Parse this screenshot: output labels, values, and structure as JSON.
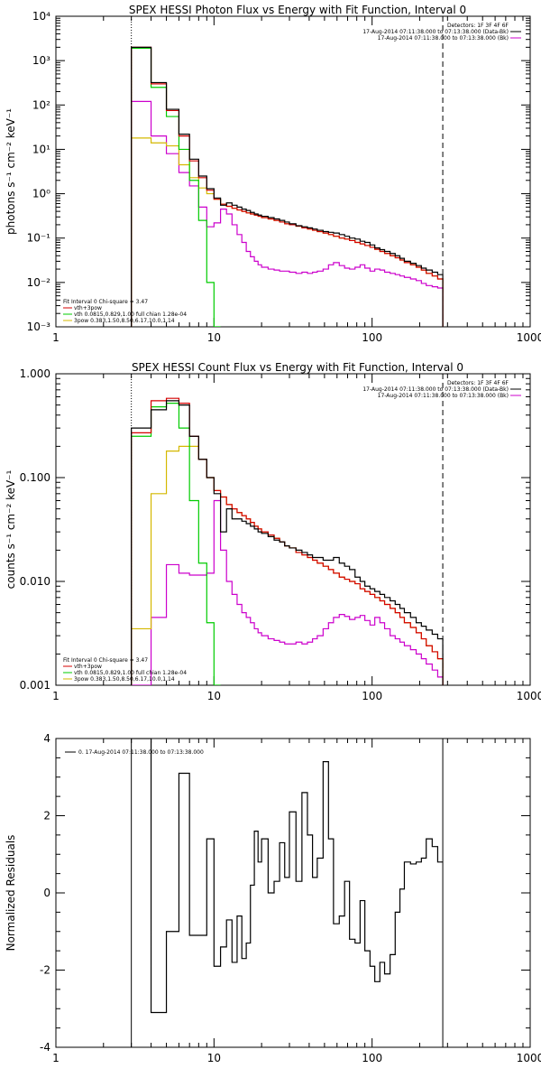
{
  "chart_data": [
    {
      "type": "line",
      "title": "SPEX HESSI Photon Flux vs Energy with Fit Function, Interval 0",
      "xlabel": "",
      "ylabel": "photons s⁻¹ cm⁻² keV⁻¹",
      "xscale": "log",
      "yscale": "log",
      "xlim": [
        1,
        1000
      ],
      "ylim": [
        0.001,
        10000
      ],
      "x_ticks": [
        "1",
        "10",
        "100",
        "1000"
      ],
      "y_ticks": [
        "10⁻³",
        "10⁻²",
        "10⁻¹",
        "10⁰",
        "10¹",
        "10²",
        "10³",
        "10⁴"
      ],
      "legend_top_right": {
        "header": "Detectors: 1F 3F 4F 6F",
        "entries": [
          {
            "label": "17-Aug-2014 07:11:38.000 to 07:13:38.000 (Data-Bk)",
            "color": "#000000"
          },
          {
            "label": "17-Aug-2014 07:11:38.000 to 07:13:38.000 (Bk)",
            "color": "#cc00cc"
          }
        ]
      },
      "legend_bottom_left": {
        "header": "Fit Interval 0   Chi-square = 3.47",
        "entries": [
          {
            "label": "vth+3pow",
            "color": "#d40000"
          },
          {
            "label": "vth 0.0815,0.829,1.00  full chian 1.28e-04",
            "color": "#00cc00"
          },
          {
            "label": "3pow 0.383,1.50,8.50,6.17,10.0,1.14",
            "color": "#d4b800"
          }
        ]
      },
      "edges": [
        3,
        4,
        5,
        6,
        7,
        8,
        9,
        10,
        11,
        12,
        13,
        14,
        15,
        16,
        17,
        18,
        19,
        20,
        22,
        24,
        26,
        28,
        30,
        33,
        36,
        39,
        42,
        45,
        49,
        53,
        57,
        62,
        67,
        72,
        78,
        84,
        90,
        97,
        104,
        112,
        120,
        130,
        140,
        150,
        160,
        175,
        190,
        205,
        220,
        240,
        260,
        280
      ],
      "series": [
        {
          "name": "Data-Bk",
          "color": "#000000",
          "values": [
            2000,
            320,
            80,
            22,
            6,
            2.5,
            1.3,
            0.8,
            0.55,
            0.62,
            0.55,
            0.5,
            0.45,
            0.42,
            0.38,
            0.35,
            0.33,
            0.31,
            0.29,
            0.27,
            0.25,
            0.23,
            0.21,
            0.19,
            0.18,
            0.17,
            0.16,
            0.15,
            0.14,
            0.135,
            0.13,
            0.12,
            0.11,
            0.1,
            0.095,
            0.085,
            0.08,
            0.07,
            0.06,
            0.055,
            0.05,
            0.045,
            0.04,
            0.035,
            0.03,
            0.027,
            0.024,
            0.021,
            0.019,
            0.017,
            0.015
          ]
        },
        {
          "name": "vth+3pow",
          "color": "#d40000",
          "values": [
            2000,
            300,
            75,
            20,
            5.5,
            2.3,
            1.2,
            0.75,
            0.58,
            0.52,
            0.47,
            0.43,
            0.4,
            0.37,
            0.35,
            0.33,
            0.31,
            0.29,
            0.27,
            0.25,
            0.23,
            0.21,
            0.2,
            0.185,
            0.17,
            0.16,
            0.15,
            0.14,
            0.13,
            0.12,
            0.11,
            0.1,
            0.095,
            0.088,
            0.08,
            0.074,
            0.068,
            0.062,
            0.056,
            0.05,
            0.045,
            0.04,
            0.036,
            0.032,
            0.028,
            0.025,
            0.022,
            0.019,
            0.016,
            0.014,
            0.012
          ]
        },
        {
          "name": "vth",
          "color": "#00cc00",
          "values": [
            1900,
            250,
            55,
            10,
            2,
            0.25,
            0.01,
            0.0005
          ]
        },
        {
          "name": "3pow",
          "color": "#d4b800",
          "values": [
            18,
            14,
            12,
            4.5,
            2.3,
            1.35,
            1.0,
            0.75,
            0.58,
            0.52,
            0.47,
            0.43,
            0.4,
            0.37,
            0.35,
            0.33,
            0.31,
            0.29,
            0.27,
            0.25,
            0.23,
            0.21,
            0.2,
            0.185,
            0.17,
            0.16,
            0.15,
            0.14,
            0.13,
            0.12,
            0.11,
            0.1,
            0.095,
            0.088,
            0.08,
            0.074,
            0.068,
            0.062,
            0.056,
            0.05,
            0.045,
            0.04,
            0.036,
            0.032,
            0.028,
            0.025,
            0.022,
            0.019,
            0.016,
            0.014,
            0.012
          ]
        },
        {
          "name": "Bk",
          "color": "#cc00cc",
          "values": [
            120,
            20,
            8,
            3,
            1.5,
            0.5,
            0.18,
            0.22,
            0.45,
            0.35,
            0.2,
            0.12,
            0.08,
            0.05,
            0.038,
            0.03,
            0.025,
            0.022,
            0.02,
            0.019,
            0.018,
            0.018,
            0.017,
            0.016,
            0.017,
            0.016,
            0.017,
            0.018,
            0.02,
            0.025,
            0.028,
            0.024,
            0.021,
            0.02,
            0.022,
            0.025,
            0.021,
            0.018,
            0.02,
            0.019,
            0.017,
            0.016,
            0.015,
            0.014,
            0.013,
            0.012,
            0.011,
            0.0095,
            0.0085,
            0.008,
            0.0075
          ]
        }
      ],
      "fit_range": [
        3,
        280
      ]
    },
    {
      "type": "line",
      "title": "SPEX HESSI Count Flux vs Energy with Fit Function, Interval 0",
      "xlabel": "",
      "ylabel": "counts s⁻¹ cm⁻² keV⁻¹",
      "xscale": "log",
      "yscale": "log",
      "xlim": [
        1,
        1000
      ],
      "ylim": [
        0.001,
        1.0
      ],
      "x_ticks": [
        "1",
        "10",
        "100",
        "1000"
      ],
      "y_ticks": [
        "0.001",
        "0.010",
        "0.100",
        "1.000"
      ],
      "legend_top_right": {
        "header": "Detectors: 1F 3F 4F 6F",
        "entries": [
          {
            "label": "17-Aug-2014 07:11:38.000 to 07:13:38.000 (Data-Bk)",
            "color": "#000000"
          },
          {
            "label": "17-Aug-2014 07:11:38.000 to 07:13:38.000 (Bk)",
            "color": "#cc00cc"
          }
        ]
      },
      "legend_bottom_left": {
        "header": "Fit Interval 0   Chi-square = 3.47",
        "entries": [
          {
            "label": "vth+3pow",
            "color": "#d40000"
          },
          {
            "label": "vth 0.0815,0.829,1.00  full chian 1.28e-04",
            "color": "#00cc00"
          },
          {
            "label": "3pow 0.383,1.50,8.50,6.17,10.0,1.14",
            "color": "#d4b800"
          }
        ]
      },
      "edges": [
        3,
        4,
        5,
        6,
        7,
        8,
        9,
        10,
        11,
        12,
        13,
        14,
        15,
        16,
        17,
        18,
        19,
        20,
        22,
        24,
        26,
        28,
        30,
        33,
        36,
        39,
        42,
        45,
        49,
        53,
        57,
        62,
        67,
        72,
        78,
        84,
        90,
        97,
        104,
        112,
        120,
        130,
        140,
        150,
        160,
        175,
        190,
        205,
        220,
        240,
        260,
        280
      ],
      "series": [
        {
          "name": "Data-Bk",
          "color": "#000000",
          "values": [
            0.3,
            0.45,
            0.55,
            0.5,
            0.25,
            0.15,
            0.1,
            0.07,
            0.03,
            0.05,
            0.04,
            0.04,
            0.038,
            0.036,
            0.034,
            0.032,
            0.03,
            0.029,
            0.027,
            0.025,
            0.024,
            0.022,
            0.021,
            0.02,
            0.019,
            0.018,
            0.017,
            0.017,
            0.016,
            0.016,
            0.017,
            0.015,
            0.014,
            0.013,
            0.011,
            0.01,
            0.009,
            0.0085,
            0.008,
            0.0075,
            0.007,
            0.0065,
            0.006,
            0.0055,
            0.005,
            0.0045,
            0.004,
            0.0037,
            0.0034,
            0.0031,
            0.0028
          ]
        },
        {
          "name": "vth+3pow",
          "color": "#d40000",
          "values": [
            0.27,
            0.55,
            0.58,
            0.52,
            0.25,
            0.15,
            0.1,
            0.075,
            0.065,
            0.055,
            0.05,
            0.046,
            0.043,
            0.04,
            0.037,
            0.034,
            0.032,
            0.03,
            0.028,
            0.026,
            0.024,
            0.022,
            0.021,
            0.019,
            0.018,
            0.017,
            0.016,
            0.015,
            0.014,
            0.013,
            0.012,
            0.011,
            0.0105,
            0.01,
            0.0095,
            0.0085,
            0.008,
            0.0075,
            0.007,
            0.0065,
            0.006,
            0.0055,
            0.005,
            0.0045,
            0.004,
            0.0036,
            0.0032,
            0.0028,
            0.0024,
            0.0021,
            0.0018
          ]
        },
        {
          "name": "vth",
          "color": "#00cc00",
          "values": [
            0.25,
            0.48,
            0.52,
            0.3,
            0.06,
            0.015,
            0.004,
            0.0008
          ]
        },
        {
          "name": "3pow",
          "color": "#d4b800",
          "values": [
            0.0035,
            0.07,
            0.18,
            0.2,
            0.2,
            0.15,
            0.1,
            0.075,
            0.065,
            0.055,
            0.05,
            0.046,
            0.043,
            0.04,
            0.037,
            0.034,
            0.032,
            0.03,
            0.028,
            0.026,
            0.024,
            0.022,
            0.021,
            0.019,
            0.018,
            0.017,
            0.016,
            0.015,
            0.014,
            0.013,
            0.012,
            0.011,
            0.0105,
            0.01,
            0.0095,
            0.0085,
            0.008,
            0.0075,
            0.007,
            0.0065,
            0.006,
            0.0055,
            0.005,
            0.0045,
            0.004,
            0.0036,
            0.0032,
            0.0028,
            0.0024,
            0.0021,
            0.0018
          ]
        },
        {
          "name": "Bk",
          "color": "#cc00cc",
          "values": [
            0.0008,
            0.0045,
            0.0145,
            0.012,
            0.0115,
            0.0115,
            0.012,
            0.06,
            0.02,
            0.01,
            0.0075,
            0.006,
            0.005,
            0.0045,
            0.004,
            0.0035,
            0.0032,
            0.003,
            0.0028,
            0.0027,
            0.0026,
            0.0025,
            0.0025,
            0.0026,
            0.0025,
            0.0026,
            0.0028,
            0.003,
            0.0035,
            0.004,
            0.0045,
            0.0048,
            0.0046,
            0.0043,
            0.0045,
            0.0047,
            0.0042,
            0.0038,
            0.0045,
            0.004,
            0.0035,
            0.003,
            0.0028,
            0.0026,
            0.0024,
            0.0022,
            0.002,
            0.0018,
            0.0016,
            0.0014,
            0.0012
          ]
        }
      ],
      "fit_range": [
        3,
        280
      ]
    },
    {
      "type": "line",
      "title": "",
      "xlabel": "",
      "ylabel": "Normalized Residuals",
      "xscale": "log",
      "yscale": "linear",
      "xlim": [
        1,
        1000
      ],
      "ylim": [
        -4,
        4
      ],
      "x_ticks": [
        "1",
        "10",
        "100",
        "1000"
      ],
      "y_ticks": [
        "-4",
        "-2",
        "0",
        "2",
        "4"
      ],
      "legend": {
        "label": "0. 17-Aug-2014 07:11:38.000 to 07:13:38.000",
        "color": "#000000"
      },
      "edges": [
        3,
        4,
        5,
        6,
        7,
        8,
        9,
        10,
        11,
        12,
        13,
        14,
        15,
        16,
        17,
        18,
        19,
        20,
        22,
        24,
        26,
        28,
        30,
        33,
        36,
        39,
        42,
        45,
        49,
        53,
        57,
        62,
        67,
        72,
        78,
        84,
        90,
        97,
        104,
        112,
        120,
        130,
        140,
        150,
        160,
        175,
        190,
        205,
        220,
        240,
        260,
        280
      ],
      "series": [
        {
          "name": "0. 17-Aug-2014 07:11:38.000 to 07:13:38.000",
          "color": "#000000",
          "values": [
            4,
            -3.1,
            -1.0,
            3.1,
            -1.1,
            -1.1,
            1.4,
            -1.9,
            -1.4,
            -0.7,
            -1.8,
            -0.6,
            -1.7,
            -1.3,
            0.2,
            1.6,
            0.8,
            1.4,
            0,
            0.3,
            1.3,
            0.4,
            2.1,
            0.3,
            2.6,
            1.5,
            0.4,
            0.9,
            3.4,
            1.4,
            -0.8,
            -0.6,
            0.3,
            -1.2,
            -1.3,
            -0.2,
            -1.5,
            -1.9,
            -2.3,
            -1.8,
            -2.1,
            -1.6,
            -0.5,
            0.1,
            0.8,
            0.75,
            0.8,
            0.9,
            1.4,
            1.2,
            0.8
          ]
        }
      ],
      "fit_range": [
        3,
        280
      ]
    }
  ]
}
